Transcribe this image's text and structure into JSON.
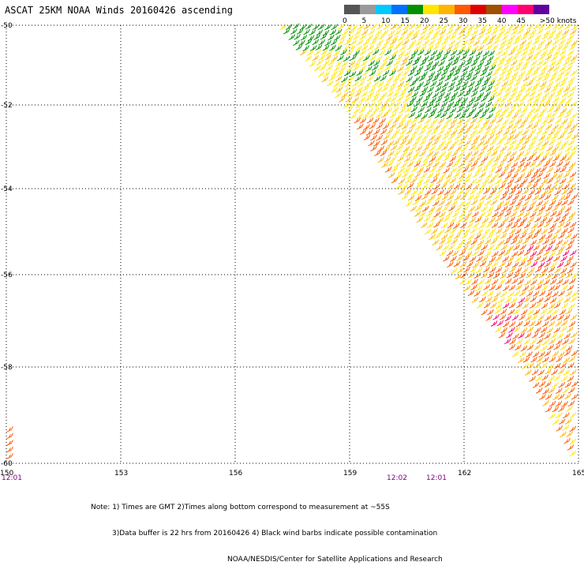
{
  "title": "ASCAT 25KM NOAA Winds 20160426 ascending",
  "legend": {
    "labels": [
      "0",
      "5",
      "10",
      "15",
      "20",
      "25",
      "30",
      "35",
      "40",
      "45",
      ">50 knots"
    ],
    "colors": [
      "#555555",
      "#9a9a9a",
      "#00c8ff",
      "#0070ff",
      "#009000",
      "#ffe600",
      "#ffb400",
      "#ff5a00",
      "#e00000",
      "#a05000",
      "#ff00ff",
      "#ff0070",
      "#6000a0"
    ]
  },
  "lat_labels": [
    "-50",
    "-52",
    "-54",
    "-56",
    "-58",
    "-60"
  ],
  "lon_labels": [
    "150",
    "153",
    "156",
    "159",
    "162",
    "165"
  ],
  "times": [
    {
      "text": "12:01",
      "color": "#800080"
    },
    {
      "text": "12:02",
      "color": "#800080"
    },
    {
      "text": "12:01",
      "color": "#800080"
    }
  ],
  "notes": [
    "Note: 1) Times are GMT 2)Times along bottom correspond to measurement at ~55S",
    "3)Data buffer is 22 hrs from 20160426 4) Black wind barbs indicate possible contamination",
    "NOAA/NESDIS/Center for Satellite Applications and Research"
  ],
  "map_data": {
    "lat_range": [
      -60,
      -50
    ],
    "lon_range": [
      150,
      165
    ],
    "swath_edge": [
      [
        157.2,
        -50
      ],
      [
        158.9,
        -52
      ],
      [
        160.3,
        -54
      ],
      [
        161.8,
        -56
      ],
      [
        163.6,
        -58
      ],
      [
        165,
        -60
      ]
    ],
    "speed_colors": {
      "light": "#ffe600",
      "moderate": "#ffb400",
      "strong": "#ff5a00",
      "green": "#009000",
      "pink": "#ff0070"
    }
  }
}
